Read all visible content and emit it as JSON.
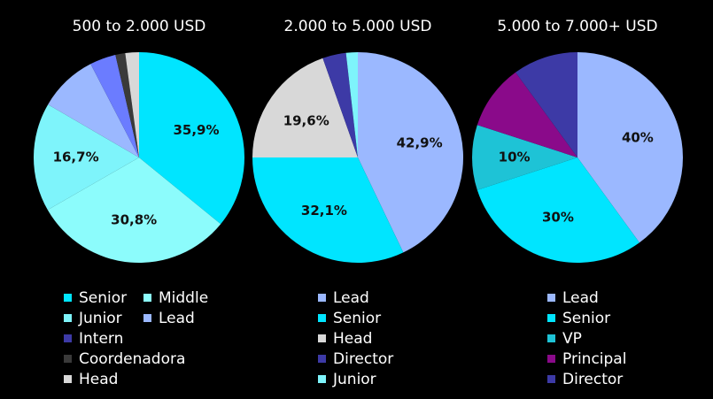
{
  "chart_data": [
    {
      "type": "pie",
      "title": "500 to 2.000 USD",
      "slices": [
        {
          "name": "Senior",
          "value": 35.9,
          "label": "35,9%",
          "color": "#00e5ff"
        },
        {
          "name": "Middle",
          "value": 30.8,
          "label": "30,8%",
          "color": "#8cfcfc"
        },
        {
          "name": "Junior",
          "value": 16.7,
          "label": "16,7%",
          "color": "#7ef4fb"
        },
        {
          "name": "Lead",
          "value": 9.0,
          "label": "",
          "color": "#9bb8ff"
        },
        {
          "name": "Intern",
          "value": 4.0,
          "label": "",
          "color": "#6b7cff"
        },
        {
          "name": "Coordenadora",
          "value": 1.5,
          "label": "",
          "color": "#3a3a3a"
        },
        {
          "name": "Head",
          "value": 2.1,
          "label": "",
          "color": "#d8d8d8"
        }
      ],
      "legend": {
        "rows": [
          [
            {
              "name": "Senior",
              "color": "#00e5ff"
            },
            {
              "name": "Middle",
              "color": "#8cfcfc"
            }
          ],
          [
            {
              "name": "Junior",
              "color": "#7ef4fb"
            },
            {
              "name": "Lead",
              "color": "#9bb8ff"
            }
          ],
          [
            {
              "name": "Intern",
              "color": "#3d3aa6"
            }
          ],
          [
            {
              "name": "Coordenadora",
              "color": "#3a3a3a"
            }
          ],
          [
            {
              "name": "Head",
              "color": "#d8d8d8"
            }
          ]
        ]
      }
    },
    {
      "type": "pie",
      "title": "2.000 to 5.000 USD",
      "slices": [
        {
          "name": "Lead",
          "value": 42.9,
          "label": "42,9%",
          "color": "#9bb8ff"
        },
        {
          "name": "Senior",
          "value": 32.1,
          "label": "32,1%",
          "color": "#00e5ff"
        },
        {
          "name": "Head",
          "value": 19.6,
          "label": "19,6%",
          "color": "#d8d8d8"
        },
        {
          "name": "Director",
          "value": 3.6,
          "label": "",
          "color": "#3d3aa6"
        },
        {
          "name": "Junior",
          "value": 1.8,
          "label": "",
          "color": "#7ef4fb"
        }
      ],
      "legend": {
        "rows": [
          [
            {
              "name": "Lead",
              "color": "#9bb8ff"
            }
          ],
          [
            {
              "name": "Senior",
              "color": "#00e5ff"
            }
          ],
          [
            {
              "name": "Head",
              "color": "#d8d8d8"
            }
          ],
          [
            {
              "name": "Director",
              "color": "#3d3aa6"
            }
          ],
          [
            {
              "name": "Junior",
              "color": "#7ef4fb"
            }
          ]
        ]
      }
    },
    {
      "type": "pie",
      "title": "5.000 to 7.000+ USD",
      "slices": [
        {
          "name": "Lead",
          "value": 40,
          "label": "40%",
          "color": "#9bb8ff"
        },
        {
          "name": "Senior",
          "value": 30,
          "label": "30%",
          "color": "#00e5ff"
        },
        {
          "name": "VP",
          "value": 10,
          "label": "10%",
          "color": "#1ec3d6"
        },
        {
          "name": "Principal",
          "value": 10,
          "label": "",
          "color": "#8a0a8a"
        },
        {
          "name": "Director",
          "value": 10,
          "label": "",
          "color": "#3d3aa6"
        }
      ],
      "legend": {
        "rows": [
          [
            {
              "name": "Lead",
              "color": "#9bb8ff"
            }
          ],
          [
            {
              "name": "Senior",
              "color": "#00e5ff"
            }
          ],
          [
            {
              "name": "VP",
              "color": "#1ec3d6"
            }
          ],
          [
            {
              "name": "Principal",
              "color": "#8a0a8a"
            }
          ],
          [
            {
              "name": "Director",
              "color": "#3d3aa6"
            }
          ]
        ]
      }
    }
  ]
}
